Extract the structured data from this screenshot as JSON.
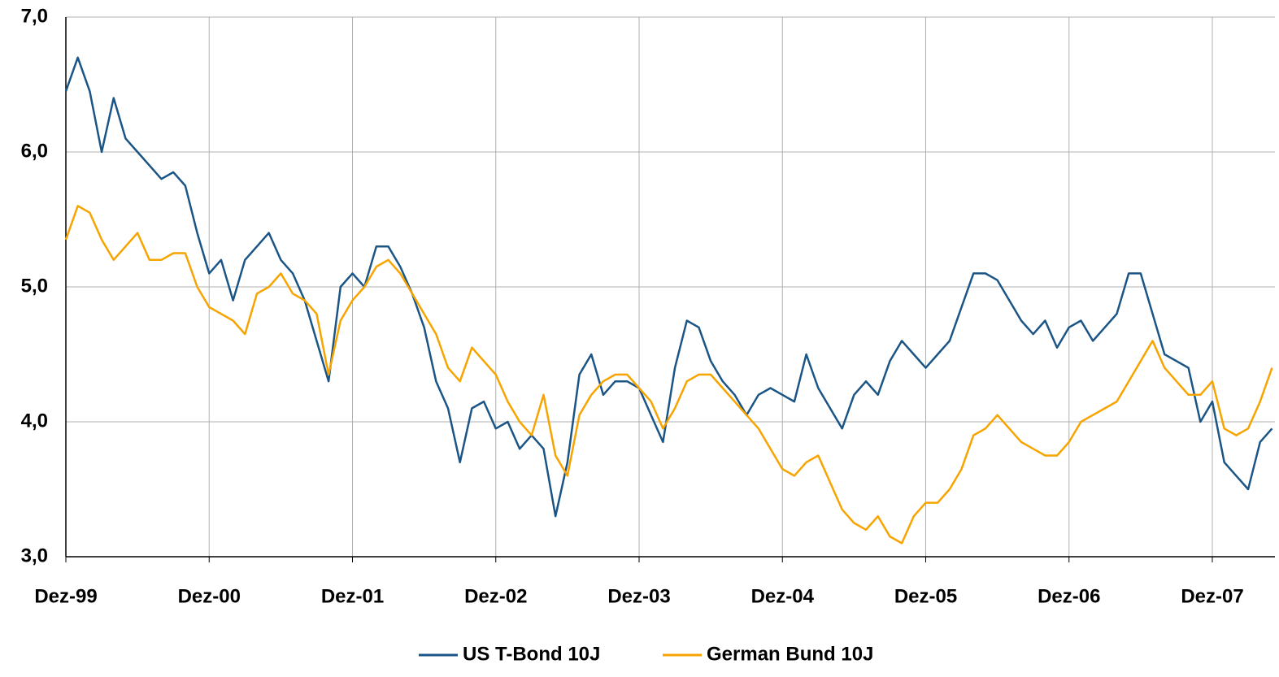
{
  "chart_data": {
    "type": "line",
    "categories": [
      "Dez-99",
      null,
      null,
      null,
      null,
      null,
      null,
      null,
      null,
      null,
      null,
      null,
      "Dez-00",
      null,
      null,
      null,
      null,
      null,
      null,
      null,
      null,
      null,
      null,
      null,
      "Dez-01",
      null,
      null,
      null,
      null,
      null,
      null,
      null,
      null,
      null,
      null,
      null,
      "Dez-02",
      null,
      null,
      null,
      null,
      null,
      null,
      null,
      null,
      null,
      null,
      null,
      "Dez-03",
      null,
      null,
      null,
      null,
      null,
      null,
      null,
      null,
      null,
      null,
      null,
      "Dez-04",
      null,
      null,
      null,
      null,
      null,
      null,
      null,
      null,
      null,
      null,
      null,
      "Dez-05",
      null,
      null,
      null,
      null,
      null,
      null,
      null,
      null,
      null,
      null,
      null,
      "Dez-06",
      null,
      null,
      null,
      null,
      null,
      null,
      null,
      null,
      null,
      null,
      null,
      "Dez-07",
      null,
      null,
      null,
      null,
      null
    ],
    "series": [
      {
        "name": "US T-Bond 10J",
        "color": "#1b5586",
        "values": [
          6.45,
          6.7,
          6.45,
          6.0,
          6.4,
          6.1,
          6.0,
          5.9,
          5.8,
          5.85,
          5.75,
          5.4,
          5.1,
          5.2,
          4.9,
          5.2,
          5.3,
          5.4,
          5.2,
          5.1,
          4.9,
          4.6,
          4.3,
          5.0,
          5.1,
          5.0,
          5.3,
          5.3,
          5.15,
          4.95,
          4.7,
          4.3,
          4.1,
          3.7,
          4.1,
          4.15,
          3.95,
          4.0,
          3.8,
          3.9,
          3.8,
          3.3,
          3.7,
          4.35,
          4.5,
          4.2,
          4.3,
          4.3,
          4.25,
          4.05,
          3.85,
          4.4,
          4.75,
          4.7,
          4.45,
          4.3,
          4.2,
          4.05,
          4.2,
          4.25,
          4.2,
          4.15,
          4.5,
          4.25,
          4.1,
          3.95,
          4.2,
          4.3,
          4.2,
          4.45,
          4.6,
          4.5,
          4.4,
          4.5,
          4.6,
          4.85,
          5.1,
          5.1,
          5.05,
          4.9,
          4.75,
          4.65,
          4.75,
          4.55,
          4.7,
          4.75,
          4.6,
          4.7,
          4.8,
          5.1,
          5.1,
          4.8,
          4.5,
          4.45,
          4.4,
          4.0,
          4.15,
          3.7,
          3.6,
          3.5,
          3.85,
          3.95
        ]
      },
      {
        "name": "German Bund 10J",
        "color": "#f7a400",
        "values": [
          5.35,
          5.6,
          5.55,
          5.35,
          5.2,
          5.3,
          5.4,
          5.2,
          5.2,
          5.25,
          5.25,
          5.0,
          4.85,
          4.8,
          4.75,
          4.65,
          4.95,
          5.0,
          5.1,
          4.95,
          4.9,
          4.8,
          4.35,
          4.75,
          4.9,
          5.0,
          5.15,
          5.2,
          5.1,
          4.95,
          4.8,
          4.65,
          4.4,
          4.3,
          4.55,
          4.45,
          4.35,
          4.15,
          4.0,
          3.9,
          4.2,
          3.75,
          3.6,
          4.05,
          4.2,
          4.3,
          4.35,
          4.35,
          4.25,
          4.15,
          3.95,
          4.1,
          4.3,
          4.35,
          4.35,
          4.25,
          4.15,
          4.05,
          3.95,
          3.8,
          3.65,
          3.6,
          3.7,
          3.75,
          3.55,
          3.35,
          3.25,
          3.2,
          3.3,
          3.15,
          3.1,
          3.3,
          3.4,
          3.4,
          3.5,
          3.65,
          3.9,
          3.95,
          4.05,
          3.95,
          3.85,
          3.8,
          3.75,
          3.75,
          3.85,
          4.0,
          4.05,
          4.1,
          4.15,
          4.3,
          4.45,
          4.6,
          4.4,
          4.3,
          4.2,
          4.2,
          4.3,
          3.95,
          3.9,
          3.95,
          4.15,
          4.4
        ]
      }
    ],
    "ylim": [
      3,
      7
    ],
    "yticks": [
      {
        "value": 3,
        "label": "3,0"
      },
      {
        "value": 4,
        "label": "4,0"
      },
      {
        "value": 5,
        "label": "5,0"
      },
      {
        "value": 6,
        "label": "6,0"
      },
      {
        "value": 7,
        "label": "7,0"
      }
    ],
    "grid": true,
    "legend": "bottom"
  }
}
